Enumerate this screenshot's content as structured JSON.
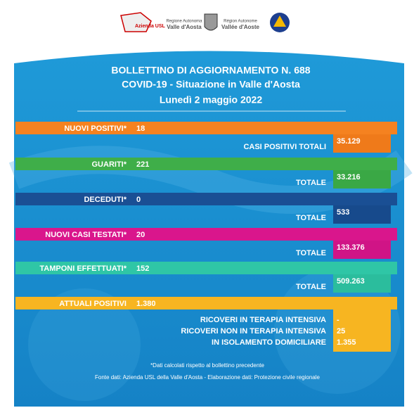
{
  "header": {
    "logos": [
      "Azienda USL",
      "Regione Autonoma",
      "Valle d'Aosta",
      "Région Autonome",
      "Vallée d'Aoste"
    ]
  },
  "title": [
    "BOLLETTINO DI AGGIORNAMENTO N. 688",
    "COVID-19 - Situazione in Valle d'Aosta",
    "Lunedì 2 maggio 2022"
  ],
  "rows": [
    {
      "label": "NUOVI POSITIVI*",
      "value": "18",
      "total_label": "CASI POSITIVI TOTALI",
      "total_value": "35.129"
    },
    {
      "label": "GUARITI*",
      "value": "221",
      "total_label": "TOTALE",
      "total_value": "33.216"
    },
    {
      "label": "DECEDUTI*",
      "value": "0",
      "total_label": "TOTALE",
      "total_value": "533"
    },
    {
      "label": "NUOVI CASI TESTATI*",
      "value": "20",
      "total_label": "TOTALE",
      "total_value": "133.376"
    },
    {
      "label": "TAMPONI EFFETTUATI*",
      "value": "152",
      "total_label": "TOTALE",
      "total_value": "509.263"
    }
  ],
  "active": {
    "label": "ATTUALI POSITIVI",
    "value": "1.380",
    "breakdown": [
      {
        "label": "RICOVERI IN TERAPIA INTENSIVA",
        "value": "-"
      },
      {
        "label": "RICOVERI NON IN TERAPIA INTENSIVA",
        "value": "25"
      },
      {
        "label": "IN ISOLAMENTO DOMICILIARE",
        "value": "1.355"
      }
    ]
  },
  "footnote": "*Dati calcolati rispetto al bollettino precedente",
  "source": "Fonte dati: Azienda USL della Valle d'Aosta - Elaborazione dati: Protezione civile regionale"
}
